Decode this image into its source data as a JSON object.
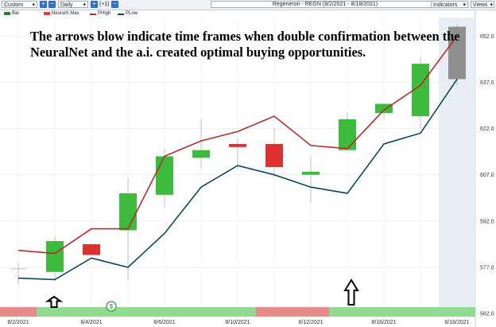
{
  "toolbar": {
    "preset": "Custom",
    "interval": "Daily",
    "offset": "(+1)",
    "chart_title": "Regeneron - REGN (8/2/2021 - 8/18/2021)",
    "indicators": "Indicators",
    "views": "Views",
    "plus_icon": "plus-icon",
    "minus_icon": "minus-icon",
    "dropdown_icon": "chevron-down-icon"
  },
  "legend": [
    {
      "label": "Bar",
      "color": "#2e7d32"
    },
    {
      "label": "NeuralX.Max",
      "color": "#e04040"
    },
    {
      "label": "PHigh",
      "color": "#b32d2d"
    },
    {
      "label": "PLow",
      "color": "#0b4a52"
    }
  ],
  "annotation": "The arrows blow indicate time frames when double confirmation between the NeuralNet and the a.i. created optimal buying opportunities.",
  "colors": {
    "up": "#3dbb3d",
    "down": "#e03030",
    "forecast": "#8f8f8f",
    "phigh": "#b32d2d",
    "plow": "#0b4a52",
    "band_red": "#e88a8a",
    "band_green": "#8fdb8f",
    "highlight": "#e8eef6"
  },
  "chart_data": {
    "type": "candlestick",
    "x": [
      "8/2/2021",
      "8/3/2021",
      "8/4/2021",
      "8/5/2021",
      "8/6/2021",
      "8/9/2021",
      "8/10/2021",
      "8/11/2021",
      "8/12/2021",
      "8/13/2021",
      "8/16/2021",
      "8/17/2021",
      "8/18/2021"
    ],
    "ohlc": [
      {
        "open": 576.5,
        "high": 578.5,
        "low": 571.5,
        "close": 576.5
      },
      {
        "open": 575.5,
        "high": 587.0,
        "low": 572.5,
        "close": 585.5
      },
      {
        "open": 584.5,
        "high": 584.5,
        "low": 581.0,
        "close": 581.0
      },
      {
        "open": 589.0,
        "high": 606.0,
        "low": 573.0,
        "close": 601.0
      },
      {
        "open": 600.5,
        "high": 615.5,
        "low": 596.5,
        "close": 613.0
      },
      {
        "open": 612.5,
        "high": 625.0,
        "low": 609.0,
        "close": 615.0
      },
      {
        "open": 617.0,
        "high": 619.0,
        "low": 609.0,
        "close": 616.0
      },
      {
        "open": 617.0,
        "high": 622.0,
        "low": 606.0,
        "close": 609.5
      },
      {
        "open": 607.0,
        "high": 613.0,
        "low": 598.0,
        "close": 608.0
      },
      {
        "open": 615.0,
        "high": 627.0,
        "low": 615.0,
        "close": 625.0
      },
      {
        "open": 627.0,
        "high": 630.0,
        "low": 625.0,
        "close": 630.0
      },
      {
        "open": 626.0,
        "high": 645.0,
        "low": 622.0,
        "close": 643.0
      },
      {
        "open": 638.0,
        "high": 656.0,
        "low": 636.0,
        "close": 655.0
      }
    ],
    "forecast_index": 12,
    "series": [
      {
        "name": "PHigh",
        "values": [
          582.5,
          581.5,
          589.5,
          589.5,
          613.0,
          618.0,
          621.0,
          626.0,
          616.5,
          615.5,
          628.0,
          636.0,
          652.0
        ]
      },
      {
        "name": "PLow",
        "values": [
          573.5,
          573.0,
          580.0,
          577.0,
          588.0,
          603.0,
          610.0,
          607.0,
          603.0,
          601.0,
          617.0,
          620.5,
          638.0
        ]
      }
    ],
    "signal_band": [
      "red",
      "green",
      "green",
      "green",
      "green",
      "green",
      "green",
      "red",
      "red",
      "green",
      "green",
      "green",
      "green"
    ],
    "signal_marks": [
      {
        "index": 3,
        "label": "$"
      }
    ],
    "arrows": [
      {
        "index": 1
      },
      {
        "index": 9
      }
    ],
    "x_ticks": [
      "8/2/2021",
      "8/4/2021",
      "8/6/2021",
      "8/10/2021",
      "8/12/2021",
      "8/16/2021",
      "8/18/2021"
    ],
    "y_ticks": [
      562.0,
      577.0,
      592.0,
      607.0,
      622.0,
      637.0,
      652.0
    ],
    "ylim": [
      561,
      658
    ],
    "grid": true
  }
}
